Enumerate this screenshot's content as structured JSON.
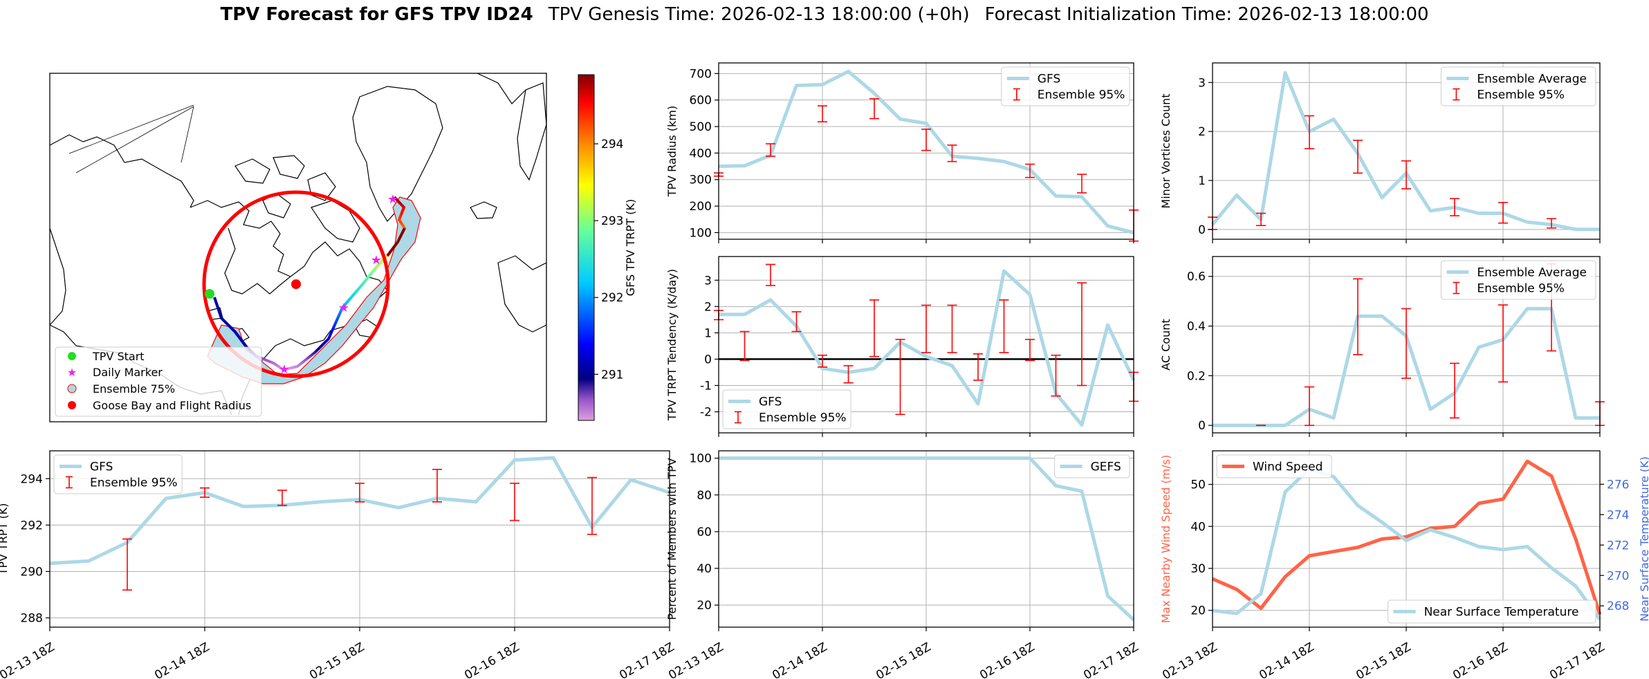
{
  "title": {
    "bold": "TPV Forecast for GFS TPV ID24",
    "genesis": "TPV Genesis Time: 2026-02-13 18:00:00 (+0h)",
    "init": "Forecast Initialization Time: 2026-02-13 18:00:00"
  },
  "colors": {
    "track_mean": "#add8e6",
    "ensemble_err": "#ff0000",
    "wind": "#ff6347",
    "temp_axis": "#4169e1",
    "radius_circle": "#ff0000"
  },
  "time_ticks": [
    "02-13 18Z",
    "02-14 18Z",
    "02-15 18Z",
    "02-16 18Z",
    "02-17 18Z"
  ],
  "map": {
    "colorbar_label": "GFS TPV TRPT (K)",
    "colorbar_ticks": [
      291,
      292,
      293,
      294
    ],
    "colorbar_range": [
      290.4,
      294.9
    ],
    "legend": [
      "TPV Start",
      "Daily Marker",
      "Ensemble 75%",
      "Goose Bay and Flight Radius"
    ]
  },
  "chart_data": [
    {
      "id": "radius",
      "type": "line",
      "ylabel": "TPV Radius (km)",
      "ylim": [
        75,
        740
      ],
      "yticks": [
        100,
        200,
        300,
        400,
        500,
        600,
        700
      ],
      "legend": [
        "GFS",
        "Ensemble 95%"
      ],
      "legend_pos": "top-right",
      "x_hours": [
        0,
        6,
        12,
        18,
        24,
        30,
        36,
        42,
        48,
        54,
        60,
        66,
        72,
        78,
        84,
        90,
        96
      ],
      "series": [
        {
          "name": "GFS",
          "values": [
            350,
            352,
            392,
            655,
            658,
            708,
            625,
            528,
            512,
            388,
            380,
            368,
            338,
            238,
            235,
            125,
            100
          ]
        }
      ],
      "errorbars": [
        {
          "x": 0,
          "lo": 313,
          "hi": 325
        },
        {
          "x": 12,
          "lo": 388,
          "hi": 435
        },
        {
          "x": 24,
          "lo": 518,
          "hi": 578
        },
        {
          "x": 36,
          "lo": 530,
          "hi": 605
        },
        {
          "x": 48,
          "lo": 410,
          "hi": 490
        },
        {
          "x": 54,
          "lo": 368,
          "hi": 430
        },
        {
          "x": 72,
          "lo": 308,
          "hi": 358
        },
        {
          "x": 84,
          "lo": 250,
          "hi": 320
        },
        {
          "x": 96,
          "lo": 68,
          "hi": 185
        }
      ]
    },
    {
      "id": "minor",
      "type": "line",
      "ylabel": "Minor Vortices Count",
      "ylim": [
        -0.2,
        3.4
      ],
      "yticks": [
        0,
        1,
        2,
        3
      ],
      "legend": [
        "Ensemble Average",
        "Ensemble 95%"
      ],
      "legend_pos": "top-right",
      "x_hours": [
        0,
        6,
        12,
        18,
        24,
        30,
        36,
        42,
        48,
        54,
        60,
        66,
        72,
        78,
        84,
        90,
        96
      ],
      "series": [
        {
          "name": "Ensemble Average",
          "values": [
            0.1,
            0.7,
            0.2,
            3.2,
            2.0,
            2.25,
            1.55,
            0.65,
            1.15,
            0.38,
            0.45,
            0.33,
            0.33,
            0.15,
            0.1,
            0.0,
            0.0
          ]
        }
      ],
      "errorbars": [
        {
          "x": 0,
          "lo": 0.0,
          "hi": 0.25
        },
        {
          "x": 12,
          "lo": 0.08,
          "hi": 0.33
        },
        {
          "x": 24,
          "lo": 1.65,
          "hi": 2.32
        },
        {
          "x": 36,
          "lo": 1.15,
          "hi": 1.82
        },
        {
          "x": 48,
          "lo": 0.83,
          "hi": 1.4
        },
        {
          "x": 60,
          "lo": 0.28,
          "hi": 0.63
        },
        {
          "x": 72,
          "lo": 0.13,
          "hi": 0.55
        },
        {
          "x": 84,
          "lo": 0.03,
          "hi": 0.22
        }
      ]
    },
    {
      "id": "tendency",
      "type": "line",
      "ylabel": "TPV TRPT Tendency (K/day)",
      "ylim": [
        -2.8,
        3.9
      ],
      "yticks": [
        -2,
        -1,
        0,
        1,
        2,
        3
      ],
      "legend": [
        "GFS",
        "Ensemble 95%"
      ],
      "legend_pos": "bottom-left",
      "x_hours": [
        0,
        6,
        12,
        18,
        24,
        30,
        36,
        42,
        48,
        54,
        60,
        66,
        72,
        78,
        84,
        90,
        96
      ],
      "series": [
        {
          "name": "GFS",
          "values": [
            1.7,
            1.7,
            2.25,
            1.25,
            -0.35,
            -0.5,
            -0.35,
            0.65,
            0.1,
            -0.25,
            -1.7,
            3.35,
            2.45,
            -1.3,
            -2.5,
            1.3,
            -0.8
          ]
        }
      ],
      "errorbars": [
        {
          "x": 0,
          "lo": 1.5,
          "hi": 1.85
        },
        {
          "x": 6,
          "lo": -0.05,
          "hi": 1.05
        },
        {
          "x": 12,
          "lo": 2.8,
          "hi": 3.6
        },
        {
          "x": 18,
          "lo": 1.05,
          "hi": 1.8
        },
        {
          "x": 24,
          "lo": -0.3,
          "hi": 0.15
        },
        {
          "x": 30,
          "lo": -0.9,
          "hi": -0.25
        },
        {
          "x": 36,
          "lo": 0.1,
          "hi": 2.25
        },
        {
          "x": 42,
          "lo": -2.1,
          "hi": 0.75
        },
        {
          "x": 48,
          "lo": 0.25,
          "hi": 2.05
        },
        {
          "x": 54,
          "lo": 0.25,
          "hi": 2.05
        },
        {
          "x": 60,
          "lo": -0.8,
          "hi": 0.2
        },
        {
          "x": 66,
          "lo": 0.25,
          "hi": 2.25
        },
        {
          "x": 72,
          "lo": -0.05,
          "hi": 0.75
        },
        {
          "x": 78,
          "lo": -1.4,
          "hi": 0.15
        },
        {
          "x": 84,
          "lo": -1.0,
          "hi": 2.9
        },
        {
          "x": 96,
          "lo": -1.6,
          "hi": -0.5
        }
      ]
    },
    {
      "id": "ac",
      "type": "line",
      "ylabel": "AC Count",
      "ylim": [
        -0.03,
        0.68
      ],
      "yticks": [
        0.0,
        0.2,
        0.4,
        0.6
      ],
      "legend": [
        "Ensemble Average",
        "Ensemble 95%"
      ],
      "legend_pos": "top-right",
      "x_hours": [
        0,
        6,
        12,
        18,
        24,
        30,
        36,
        42,
        48,
        54,
        60,
        66,
        72,
        78,
        84,
        90,
        96
      ],
      "series": [
        {
          "name": "Ensemble Average",
          "values": [
            0,
            0,
            0,
            0,
            0.065,
            0.03,
            0.44,
            0.44,
            0.36,
            0.065,
            0.13,
            0.315,
            0.345,
            0.47,
            0.47,
            0.03,
            0.03
          ]
        }
      ],
      "errorbars": [
        {
          "x": 12,
          "lo": 0.0,
          "hi": 0.0
        },
        {
          "x": 24,
          "lo": 0.0,
          "hi": 0.155
        },
        {
          "x": 36,
          "lo": 0.285,
          "hi": 0.59
        },
        {
          "x": 48,
          "lo": 0.19,
          "hi": 0.47
        },
        {
          "x": 60,
          "lo": 0.03,
          "hi": 0.25
        },
        {
          "x": 72,
          "lo": 0.175,
          "hi": 0.485
        },
        {
          "x": 84,
          "lo": 0.3,
          "hi": 0.65
        },
        {
          "x": 96,
          "lo": 0.0,
          "hi": 0.095
        }
      ]
    },
    {
      "id": "trpt",
      "type": "line",
      "ylabel": "TPV TRPT (K)",
      "ylim": [
        287.6,
        295.2
      ],
      "yticks": [
        288,
        290,
        292,
        294
      ],
      "legend": [
        "GFS",
        "Ensemble 95%"
      ],
      "legend_pos": "top-left",
      "x_hours": [
        0,
        6,
        12,
        18,
        24,
        30,
        36,
        42,
        48,
        54,
        60,
        66,
        72,
        78,
        84,
        90,
        96
      ],
      "series": [
        {
          "name": "GFS",
          "values": [
            290.35,
            290.45,
            291.25,
            293.15,
            293.4,
            292.8,
            292.85,
            293.0,
            293.1,
            292.75,
            293.15,
            293.0,
            294.8,
            294.9,
            291.9,
            293.95,
            293.4
          ]
        }
      ],
      "errorbars": [
        {
          "x": 12,
          "lo": 289.2,
          "hi": 291.4
        },
        {
          "x": 24,
          "lo": 293.2,
          "hi": 293.6
        },
        {
          "x": 36,
          "lo": 292.85,
          "hi": 293.5
        },
        {
          "x": 48,
          "lo": 293.0,
          "hi": 293.8
        },
        {
          "x": 60,
          "lo": 293.0,
          "hi": 294.4
        },
        {
          "x": 72,
          "lo": 292.2,
          "hi": 293.8
        },
        {
          "x": 84,
          "lo": 291.6,
          "hi": 294.05
        }
      ]
    },
    {
      "id": "percent",
      "type": "line",
      "ylabel": "Percent of Members with TPV",
      "ylim": [
        8,
        104
      ],
      "yticks": [
        20,
        40,
        60,
        80,
        100
      ],
      "legend": [
        "GEFS"
      ],
      "legend_pos": "top-right",
      "x_hours": [
        0,
        6,
        12,
        18,
        24,
        30,
        36,
        42,
        48,
        54,
        60,
        66,
        72,
        78,
        84,
        90,
        96
      ],
      "series": [
        {
          "name": "GEFS",
          "values": [
            100,
            100,
            100,
            100,
            100,
            100,
            100,
            100,
            100,
            100,
            100,
            100,
            100,
            85,
            82,
            25,
            12
          ]
        }
      ],
      "errorbars": []
    },
    {
      "id": "wind_temp",
      "type": "line",
      "ylabel": "Max Nearby Wind Speed (m/s)",
      "ylabel_right": "Near Surface Temperature (K)",
      "ylim": [
        16,
        58
      ],
      "yticks": [
        20,
        30,
        40,
        50
      ],
      "ylim_right": [
        266.6,
        278.2
      ],
      "yticks_right": [
        268,
        270,
        272,
        274,
        276
      ],
      "legend": [
        "Wind Speed"
      ],
      "legend_right": [
        "Near Surface Temperature"
      ],
      "x_hours": [
        0,
        6,
        12,
        18,
        24,
        30,
        36,
        42,
        48,
        54,
        60,
        66,
        72,
        78,
        84,
        90,
        96
      ],
      "series": [
        {
          "name": "Wind Speed",
          "axis": "left",
          "values": [
            27.5,
            25,
            20.5,
            28,
            33,
            34,
            35,
            37,
            37.5,
            39.5,
            40,
            45.5,
            46.5,
            55.5,
            52,
            37,
            19
          ]
        },
        {
          "name": "Near Surface Temperature",
          "axis": "right",
          "values": [
            267.7,
            267.5,
            268.8,
            275.5,
            277.0,
            276.5,
            274.6,
            273.5,
            272.3,
            273.0,
            272.5,
            271.9,
            271.7,
            271.9,
            270.5,
            269.3,
            267.1
          ]
        }
      ],
      "errorbars": []
    }
  ]
}
